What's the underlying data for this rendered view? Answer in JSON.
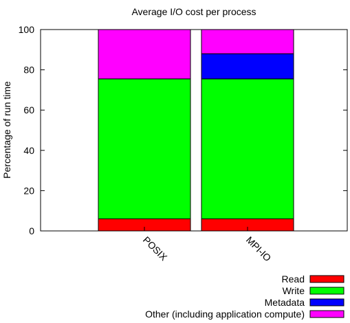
{
  "chart_data": {
    "type": "bar",
    "stacked": true,
    "title": "Average I/O cost per process",
    "xlabel": "",
    "ylabel": "Percentage of run time",
    "ylim": [
      0,
      100
    ],
    "yticks": [
      0,
      20,
      40,
      60,
      80,
      100
    ],
    "grid": false,
    "legend_position": "bottom-right",
    "categories": [
      "POSIX",
      "MPI-IO"
    ],
    "series": [
      {
        "name": "Read",
        "color": "#ff0000",
        "values": [
          6,
          6
        ]
      },
      {
        "name": "Write",
        "color": "#00ff00",
        "values": [
          69.5,
          69.5
        ]
      },
      {
        "name": "Metadata",
        "color": "#0000ff",
        "values": [
          0,
          12.5
        ]
      },
      {
        "name": "Other (including application compute)",
        "color": "#ff00ff",
        "values": [
          24.5,
          12
        ]
      }
    ]
  }
}
